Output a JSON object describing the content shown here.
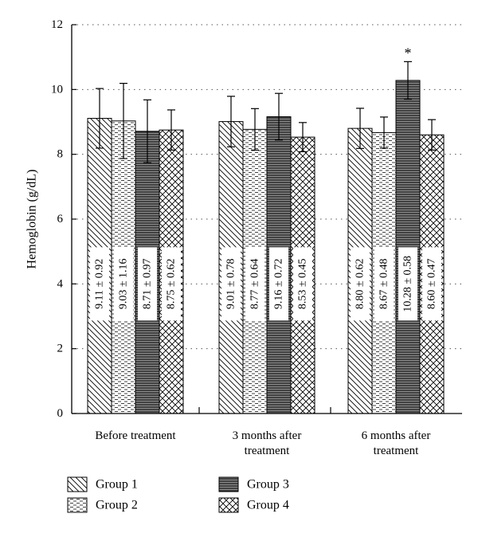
{
  "chart_data": {
    "type": "bar",
    "title": "",
    "xlabel": "",
    "ylabel": "Hemoglobin (g/dL)",
    "ylim": [
      0,
      12
    ],
    "yticks": [
      0,
      2,
      4,
      6,
      8,
      10,
      12
    ],
    "grid": true,
    "legend_position": "bottom",
    "categories": [
      [
        "Before treatment"
      ],
      [
        "3 months after",
        "treatment"
      ],
      [
        "6 months after",
        "treatment"
      ]
    ],
    "series": [
      {
        "name": "Group 1",
        "pattern": "diagonal-down",
        "values": [
          9.11,
          9.01,
          8.8
        ],
        "errors": [
          0.92,
          0.78,
          0.62
        ],
        "labels": [
          "9.11 ± 0.92",
          "9.01 ± 0.78",
          "8.80 ± 0.62"
        ]
      },
      {
        "name": "Group 2",
        "pattern": "dashed",
        "values": [
          9.03,
          8.77,
          8.67
        ],
        "errors": [
          1.16,
          0.64,
          0.48
        ],
        "labels": [
          "9.03 ± 1.16",
          "8.77 ± 0.64",
          "8.67 ± 0.48"
        ]
      },
      {
        "name": "Group 3",
        "pattern": "horizontal",
        "values": [
          8.71,
          9.16,
          10.28
        ],
        "errors": [
          0.97,
          0.72,
          0.58
        ],
        "labels": [
          "8.71 ± 0.97",
          "9.16 ± 0.72",
          "10.28 ± 0.58"
        ]
      },
      {
        "name": "Group 4",
        "pattern": "crosshatch",
        "values": [
          8.75,
          8.53,
          8.6
        ],
        "errors": [
          0.62,
          0.45,
          0.47
        ],
        "labels": [
          "8.75 ± 0.62",
          "8.53 ± 0.45",
          "8.60 ± 0.47"
        ]
      }
    ],
    "annotations": [
      {
        "text": "*",
        "series": 2,
        "category": 2
      }
    ]
  },
  "colors": {
    "axis": "#000000",
    "grid": "#555555",
    "group1_fill": "#ffffff",
    "group2_fill": "#ffffff",
    "group3_fill": "#6b6b6b",
    "group4_fill": "#ffffff",
    "hatch": "#000000"
  }
}
